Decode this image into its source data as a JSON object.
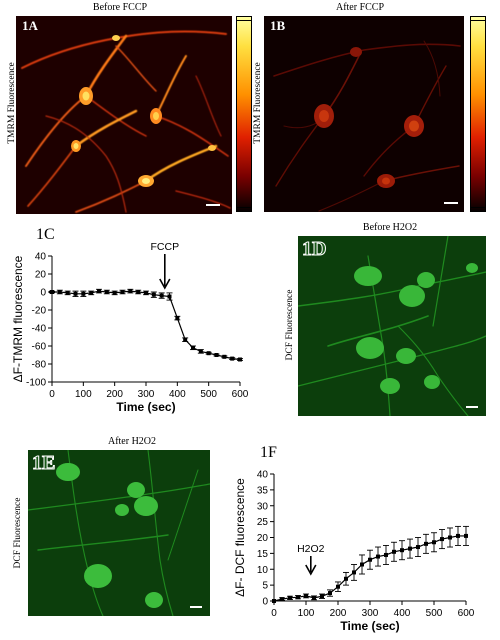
{
  "panels": {
    "A": {
      "label": "1A",
      "title": "Before FCCP",
      "ylabel": "TMRM Fluorescence"
    },
    "B": {
      "label": "1B",
      "title": "After FCCP",
      "ylabel": "TMRM Fluorescence"
    },
    "D": {
      "label": "1D",
      "title": "Before H2O2",
      "ylabel": "DCF Fluorescence"
    },
    "E": {
      "label": "1E",
      "title": "After H2O2",
      "ylabel": "DCF Fluorescence"
    }
  },
  "colors": {
    "tmrm_hot": "#ffcf3a",
    "tmrm_dark": "#2a0000",
    "dcf_green": "#2db82d",
    "dcf_bg": "#0a3f0a"
  },
  "chart_data": [
    {
      "id": "1C",
      "type": "line",
      "title": "1C",
      "xlabel": "Time (sec)",
      "ylabel": "ΔF-TMRM fluorescence",
      "xlim": [
        0,
        600
      ],
      "ylim": [
        -100,
        40
      ],
      "xticks": [
        0,
        100,
        200,
        300,
        400,
        500,
        600
      ],
      "yticks": [
        40,
        20,
        0,
        -20,
        -40,
        -60,
        -80,
        -100
      ],
      "annotation": {
        "text": "FCCP",
        "x": 360
      },
      "series": [
        {
          "x": [
            0,
            25,
            50,
            75,
            100,
            125,
            150,
            175,
            200,
            225,
            250,
            275,
            300,
            325,
            350,
            375,
            400,
            425,
            450,
            475,
            500,
            525,
            550,
            575,
            600
          ],
          "y": [
            0,
            0,
            -1,
            -2,
            -2,
            -1,
            1,
            0,
            -1,
            0,
            1,
            0,
            -1,
            -3,
            -4,
            -5,
            -29,
            -53,
            -62,
            -66,
            -68,
            -70,
            -72,
            -74,
            -75
          ],
          "err": [
            1,
            2,
            2,
            3,
            3,
            2,
            2,
            2,
            2,
            2,
            2,
            2,
            2,
            3,
            3,
            4,
            2,
            2,
            2,
            2,
            1,
            1,
            1,
            1,
            1
          ]
        }
      ]
    },
    {
      "id": "1F",
      "type": "line",
      "title": "1F",
      "xlabel": "Time (sec)",
      "ylabel": "ΔF- DCF fluorescence",
      "xlim": [
        0,
        600
      ],
      "ylim": [
        0,
        40
      ],
      "xticks": [
        0,
        100,
        200,
        300,
        400,
        500,
        600
      ],
      "yticks": [
        0,
        5,
        10,
        15,
        20,
        25,
        30,
        35,
        40
      ],
      "annotation": {
        "text": "H2O2",
        "x": 115
      },
      "series": [
        {
          "x": [
            0,
            25,
            50,
            75,
            100,
            125,
            150,
            175,
            200,
            225,
            250,
            275,
            300,
            325,
            350,
            375,
            400,
            425,
            450,
            475,
            500,
            525,
            550,
            575,
            600
          ],
          "y": [
            0,
            0.6,
            1,
            1.2,
            1.6,
            1,
            1.5,
            2.5,
            4.5,
            7,
            9,
            11.5,
            13,
            14,
            14.5,
            15.5,
            16,
            16.5,
            17,
            18,
            18.5,
            19.5,
            20,
            20.5,
            20.5
          ],
          "err": [
            0,
            0.4,
            0.5,
            0.5,
            0.6,
            0.6,
            0.7,
            1,
            1.5,
            2,
            2.5,
            3,
            3,
            3,
            3,
            3,
            3,
            3,
            3,
            3,
            3,
            3,
            3,
            3,
            3
          ]
        }
      ]
    }
  ]
}
